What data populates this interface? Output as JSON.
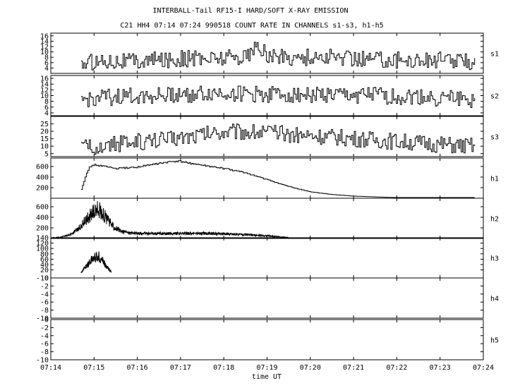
{
  "chart_data": {
    "type": "line",
    "title": "INTERBALL-Tail RF15-I HARD/SOFT X-RAY EMISSION",
    "subtitle": "C21 HH4 07:14 07:24 990518  COUNT RATE IN CHANNELS s1-s3, h1-h5",
    "xlabel": "time UT",
    "x_ticks": [
      "07:14",
      "07:15",
      "07:16",
      "07:17",
      "07:18",
      "07:19",
      "07:20",
      "07:21",
      "07:22",
      "07:23",
      "07:24"
    ],
    "xlim_minutes": [
      0,
      10
    ],
    "panels": [
      {
        "name": "s1",
        "ylim": [
          2,
          17
        ],
        "yticks": [
          4,
          6,
          8,
          10,
          12,
          14,
          16
        ],
        "style": "step",
        "x": [
          0.7,
          1,
          1.5,
          2,
          2.5,
          3,
          3.5,
          4,
          4.5,
          4.8,
          5,
          5.5,
          6,
          6.5,
          7,
          7.5,
          8,
          8.5,
          9,
          9.5,
          9.8
        ],
        "values": [
          5.5,
          6.5,
          7,
          6.5,
          7,
          7.5,
          7.5,
          8,
          8.5,
          12,
          8.5,
          8,
          8,
          8,
          7.5,
          7.5,
          7,
          7,
          7,
          6.5,
          6.5
        ]
      },
      {
        "name": "s2",
        "ylim": [
          3,
          17
        ],
        "yticks": [
          4,
          6,
          8,
          10,
          12,
          14,
          16
        ],
        "style": "step",
        "x": [
          0.7,
          1,
          1.5,
          2,
          2.5,
          3,
          3.5,
          4,
          4.5,
          5,
          5.5,
          6,
          6.5,
          7,
          7.5,
          8,
          8.5,
          9,
          9.5,
          9.8
        ],
        "values": [
          8,
          9,
          9.5,
          10,
          10,
          10.5,
          10.5,
          11,
          10.5,
          10.5,
          10.5,
          10.5,
          10,
          10,
          10,
          9.5,
          9.5,
          9,
          9,
          8.5
        ]
      },
      {
        "name": "s3",
        "ylim": [
          3,
          30
        ],
        "yticks": [
          5,
          10,
          15,
          20,
          25
        ],
        "style": "step",
        "x": [
          0.7,
          1,
          1.5,
          2,
          2.5,
          3,
          3.5,
          4,
          4.5,
          5,
          5.5,
          6,
          6.5,
          7,
          7.5,
          8,
          8.5,
          9,
          9.5,
          9.8
        ],
        "values": [
          8,
          10,
          11,
          13,
          14,
          16,
          18,
          20,
          20,
          19,
          18,
          17,
          16,
          15,
          14,
          13,
          12,
          11,
          10,
          10
        ]
      },
      {
        "name": "h1",
        "ylim": [
          0,
          760
        ],
        "yticks": [
          200,
          400,
          600
        ],
        "style": "step",
        "x": [
          0.7,
          0.8,
          0.9,
          1,
          1.1,
          1.25,
          1.5,
          2,
          2.5,
          2.9,
          3.1,
          3.5,
          4,
          4.5,
          5,
          5.5,
          6,
          6.5,
          7,
          7.5,
          8,
          8.5,
          9,
          9.5,
          9.8
        ],
        "values": [
          170,
          420,
          600,
          630,
          620,
          600,
          560,
          590,
          660,
          700,
          680,
          620,
          560,
          480,
          350,
          220,
          120,
          70,
          40,
          25,
          12,
          8,
          5,
          4,
          3
        ]
      },
      {
        "name": "h2",
        "ylim": [
          0,
          760
        ],
        "yticks": [
          200,
          400,
          600
        ],
        "style": "noisy",
        "x": [
          0,
          0.25,
          0.5,
          0.65,
          0.8,
          0.95,
          1.1,
          1.25,
          1.4,
          1.6,
          1.8,
          2,
          2.5,
          3,
          3.5,
          4,
          4.5,
          5,
          5.3,
          5.5
        ],
        "values": [
          10,
          25,
          90,
          190,
          340,
          470,
          560,
          420,
          260,
          140,
          110,
          95,
          90,
          95,
          95,
          90,
          70,
          50,
          30,
          20
        ]
      },
      {
        "name": "h3",
        "ylim": [
          -10,
          140
        ],
        "yticks": [
          -10,
          20,
          40,
          60,
          80,
          100,
          120,
          140
        ],
        "style": "noisy",
        "x": [
          0.7,
          0.8,
          0.9,
          1,
          1.1,
          1.2,
          1.3,
          1.4
        ],
        "values": [
          10,
          30,
          50,
          65,
          70,
          55,
          30,
          12
        ]
      },
      {
        "name": "h4",
        "ylim": [
          -10,
          0
        ],
        "yticks": [
          -10,
          -8,
          -6,
          -4,
          -2,
          0
        ],
        "style": "step",
        "x": [],
        "values": []
      },
      {
        "name": "h5",
        "ylim": [
          -10,
          0
        ],
        "yticks": [
          -10,
          -8,
          -6,
          -4,
          -2,
          0
        ],
        "style": "step",
        "x": [],
        "values": []
      }
    ]
  }
}
